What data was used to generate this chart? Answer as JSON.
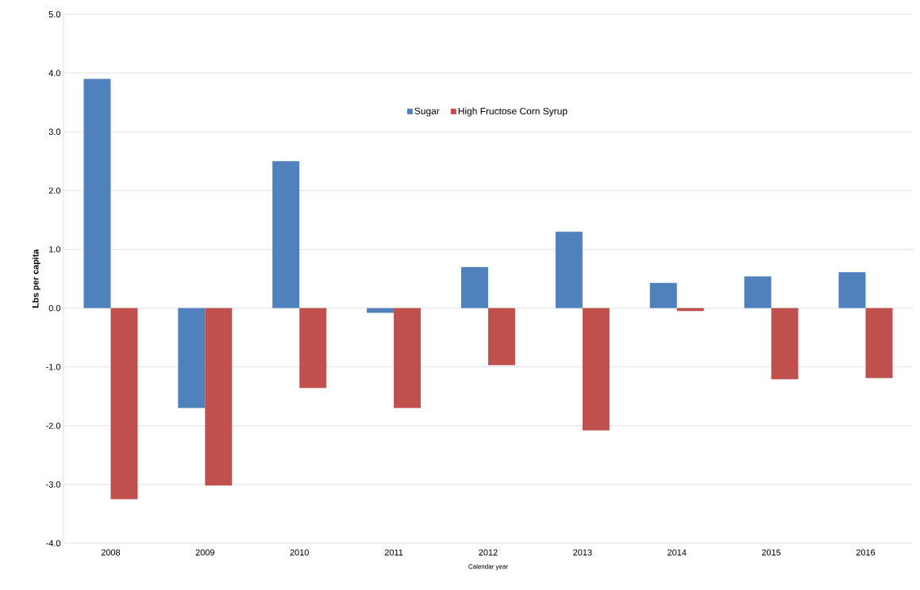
{
  "chart_data": {
    "type": "bar",
    "xlabel": "Calendar year",
    "ylabel": "Lbs per capita",
    "categories": [
      "2008",
      "2009",
      "2010",
      "2011",
      "2012",
      "2013",
      "2014",
      "2015",
      "2016"
    ],
    "series": [
      {
        "name": "Sugar",
        "color": "#4f81bd",
        "values": [
          3.9,
          -1.7,
          2.5,
          -0.08,
          0.7,
          1.3,
          0.43,
          0.54,
          0.61
        ]
      },
      {
        "name": "High Fructose Corn Syrup",
        "color": "#c0504d",
        "values": [
          -3.25,
          -3.02,
          -1.36,
          -1.7,
          -0.97,
          -2.08,
          -0.05,
          -1.21,
          -1.19
        ]
      }
    ],
    "ylim": [
      -4,
      5
    ],
    "yticks": [
      {
        "value": -4,
        "label": "-4.0"
      },
      {
        "value": -3,
        "label": "-3.0"
      },
      {
        "value": -2,
        "label": "-2.0"
      },
      {
        "value": -1,
        "label": "-1.0"
      },
      {
        "value": 0,
        "label": "0.0"
      },
      {
        "value": 1,
        "label": "1.0"
      },
      {
        "value": 2,
        "label": "2.0"
      },
      {
        "value": 3,
        "label": "3.0"
      },
      {
        "value": 4,
        "label": "4.0"
      },
      {
        "value": 5,
        "label": "5.0"
      }
    ],
    "grid": "y",
    "legend": "top"
  }
}
